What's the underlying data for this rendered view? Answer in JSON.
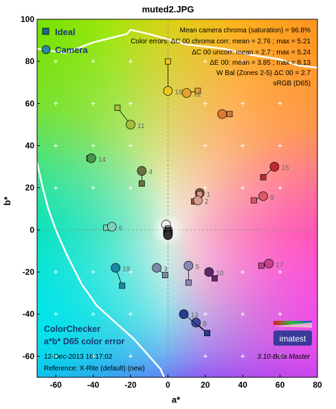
{
  "window": {
    "title": "muted2.JPG"
  },
  "legend": {
    "ideal_label": "Ideal",
    "camera_label": "Camera"
  },
  "info_lines": [
    "Mean camera chroma (saturation) = 96.8%",
    "Color errors: ΔC 00 chroma corr:  mean = 2.76 ;  max = 5.21",
    "ΔC 00 uncorr:  mean = 2.7 ;  max = 5.24",
    "ΔE 00:  mean = 3.85 ;  max = 8.13",
    "W Bal (Zones 2-5) ΔC 00 = 2.7",
    "sRGB (D65)"
  ],
  "footer": {
    "chart_name": "ColorChecker",
    "chart_subtitle": "a*b* D65 color error",
    "date": "12-Dec-2013 16:17:02",
    "version": "3.10-Beta  Master",
    "reference": "Reference: X-Rite (default) (new)",
    "logo_text": "imatest"
  },
  "colors": {
    "ideal_marker": "#1a6a8a",
    "camera_marker": "#2a8a9a",
    "gamut_line": "#ffffff",
    "label_text": "#1a3a70"
  },
  "chart_data": {
    "type": "scatter",
    "title": "muted2.JPG",
    "xlabel": "a*",
    "ylabel": "b*",
    "xlim": [
      -70,
      80
    ],
    "ylim": [
      -70,
      100
    ],
    "xticks": [
      -60,
      -40,
      -20,
      0,
      20,
      40,
      60,
      80
    ],
    "yticks": [
      -60,
      -40,
      -20,
      0,
      20,
      40,
      60,
      80,
      100
    ],
    "grid": "dashed center lines at a*=0 and b*=0, '+' markers every 10 units",
    "legend_position": "top-left",
    "series": [
      {
        "name": "Ideal",
        "marker": "square"
      },
      {
        "name": "Camera",
        "marker": "circle"
      }
    ],
    "patches": [
      {
        "id": "1",
        "ideal": [
          14,
          13.5
        ],
        "camera": [
          17,
          17.5
        ],
        "color": "#8a5a48"
      },
      {
        "id": "2",
        "ideal": [
          17,
          17
        ],
        "camera": [
          16,
          14
        ],
        "color": "#d89a8a"
      },
      {
        "id": "3",
        "ideal": [
          -1.5,
          -21.5
        ],
        "camera": [
          -6,
          -18
        ],
        "color": "#7a8aa8"
      },
      {
        "id": "4",
        "ideal": [
          -14,
          22
        ],
        "camera": [
          -14,
          28
        ],
        "color": "#6a7240"
      },
      {
        "id": "5",
        "ideal": [
          11,
          -25
        ],
        "camera": [
          11,
          -17
        ],
        "color": "#8a86b8"
      },
      {
        "id": "6",
        "ideal": [
          -33,
          1
        ],
        "camera": [
          -30,
          1.5
        ],
        "color": "#7ed0bc"
      },
      {
        "id": "7",
        "ideal": [
          33,
          55
        ],
        "camera": [
          29,
          55
        ],
        "color": "#e07a30"
      },
      {
        "id": "8",
        "ideal": [
          21,
          -49
        ],
        "camera": [
          15,
          -44
        ],
        "color": "#3a4aa0"
      },
      {
        "id": "9",
        "ideal": [
          46,
          14
        ],
        "camera": [
          51,
          16
        ],
        "color": "#d85868"
      },
      {
        "id": "10",
        "ideal": [
          25,
          -23
        ],
        "camera": [
          22,
          -20
        ],
        "color": "#5a2a68"
      },
      {
        "id": "11",
        "ideal": [
          -27,
          58
        ],
        "camera": [
          -20,
          50
        ],
        "color": "#a4bc40"
      },
      {
        "id": "12",
        "ideal": [
          16,
          66
        ],
        "camera": [
          10,
          65
        ],
        "color": "#e8a030"
      },
      {
        "id": "13",
        "ideal": [
          21,
          -49
        ],
        "camera": [
          8.5,
          -40
        ],
        "color": "#2a3a90"
      },
      {
        "id": "14",
        "ideal": [
          -42,
          34
        ],
        "camera": [
          -41,
          34
        ],
        "color": "#44944a"
      },
      {
        "id": "15",
        "ideal": [
          51,
          25
        ],
        "camera": [
          57,
          30
        ],
        "color": "#c02a30"
      },
      {
        "id": "16",
        "ideal": [
          0,
          80
        ],
        "camera": [
          0,
          66
        ],
        "color": "#e8c820"
      },
      {
        "id": "17",
        "ideal": [
          50,
          -17
        ],
        "camera": [
          54,
          -16
        ],
        "color": "#c8408a"
      },
      {
        "id": "18",
        "ideal": [
          -24.5,
          -26.5
        ],
        "camera": [
          -28,
          -18
        ],
        "color": "#1a88a8"
      },
      {
        "id": "19",
        "ideal": [
          0,
          0
        ],
        "camera": [
          -1,
          2.5
        ],
        "color": "#f0f0f0"
      },
      {
        "id": "20",
        "ideal": [
          0,
          0
        ],
        "camera": [
          0,
          0
        ],
        "color": "#c8c8c8"
      },
      {
        "id": "21",
        "ideal": [
          0,
          0
        ],
        "camera": [
          0,
          -1
        ],
        "color": "#a0a0a0"
      },
      {
        "id": "22",
        "ideal": [
          0,
          0
        ],
        "camera": [
          0,
          -1.5
        ],
        "color": "#787878"
      },
      {
        "id": "23",
        "ideal": [
          0,
          0
        ],
        "camera": [
          0,
          -2
        ],
        "color": "#505050"
      },
      {
        "id": "24",
        "ideal": [
          0,
          0
        ],
        "camera": [
          0,
          -2.5
        ],
        "color": "#303030"
      }
    ]
  }
}
